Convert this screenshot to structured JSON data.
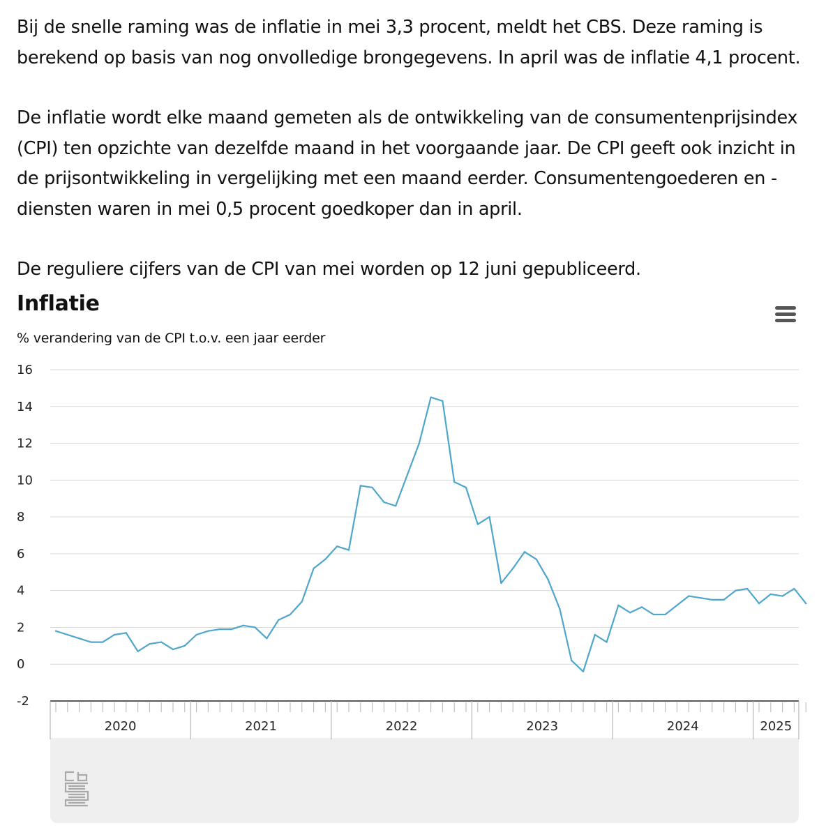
{
  "article": {
    "paragraphs": [
      "Bij de snelle raming was de inflatie in mei 3,3 procent, meldt het CBS. Deze raming is berekend op basis van nog onvolledige brongegevens. In april was de inflatie 4,1 procent.",
      "De inflatie wordt elke maand gemeten als de ontwikkeling van de consumentenprijsindex (CPI) ten opzichte van dezelfde maand in het voorgaande jaar. De CPI geeft ook inzicht in de prijsontwikkeling in vergelijking met een maand eerder. Consumentengoederen en -diensten waren in mei 0,5 procent goedkoper dan in april.",
      "De reguliere cijfers van de CPI van mei worden op 12 juni gepubliceerd."
    ]
  },
  "menu_icon": "hamburger-menu-icon",
  "logo_icon": "cbs-logo-icon",
  "chart_data": {
    "type": "line",
    "title": "Inflatie",
    "subtitle": "% verandering van de CPI t.o.v. een jaar eerder",
    "xlabel": "",
    "ylabel": "",
    "ylim": [
      -2,
      16
    ],
    "yticks": [
      -2,
      0,
      2,
      4,
      6,
      8,
      10,
      12,
      14,
      16
    ],
    "x_start": "2020-01",
    "x_end": "2025-05",
    "year_labels": [
      "2020",
      "2021",
      "2022",
      "2023",
      "2024",
      "2025"
    ],
    "grid": true,
    "legend": "none",
    "line_color": "#4ea6cc",
    "series": [
      {
        "values": [
          1.8,
          1.6,
          1.4,
          1.2,
          1.2,
          1.6,
          1.7,
          0.7,
          1.1,
          1.2,
          0.8,
          1.0,
          1.6,
          1.8,
          1.9,
          1.9,
          2.1,
          2.0,
          1.4,
          2.4,
          2.7,
          3.4,
          5.2,
          5.7,
          6.4,
          6.2,
          9.7,
          9.6,
          8.8,
          8.6,
          10.3,
          12.0,
          14.5,
          14.3,
          9.9,
          9.6,
          7.6,
          8.0,
          4.4,
          5.2,
          6.1,
          5.7,
          4.6,
          3.0,
          0.2,
          -0.4,
          1.6,
          1.2,
          3.2,
          2.8,
          3.1,
          2.7,
          2.7,
          3.2,
          3.7,
          3.6,
          3.5,
          3.5,
          4.0,
          4.1,
          3.3,
          3.8,
          3.7,
          4.1,
          3.3
        ]
      }
    ]
  }
}
